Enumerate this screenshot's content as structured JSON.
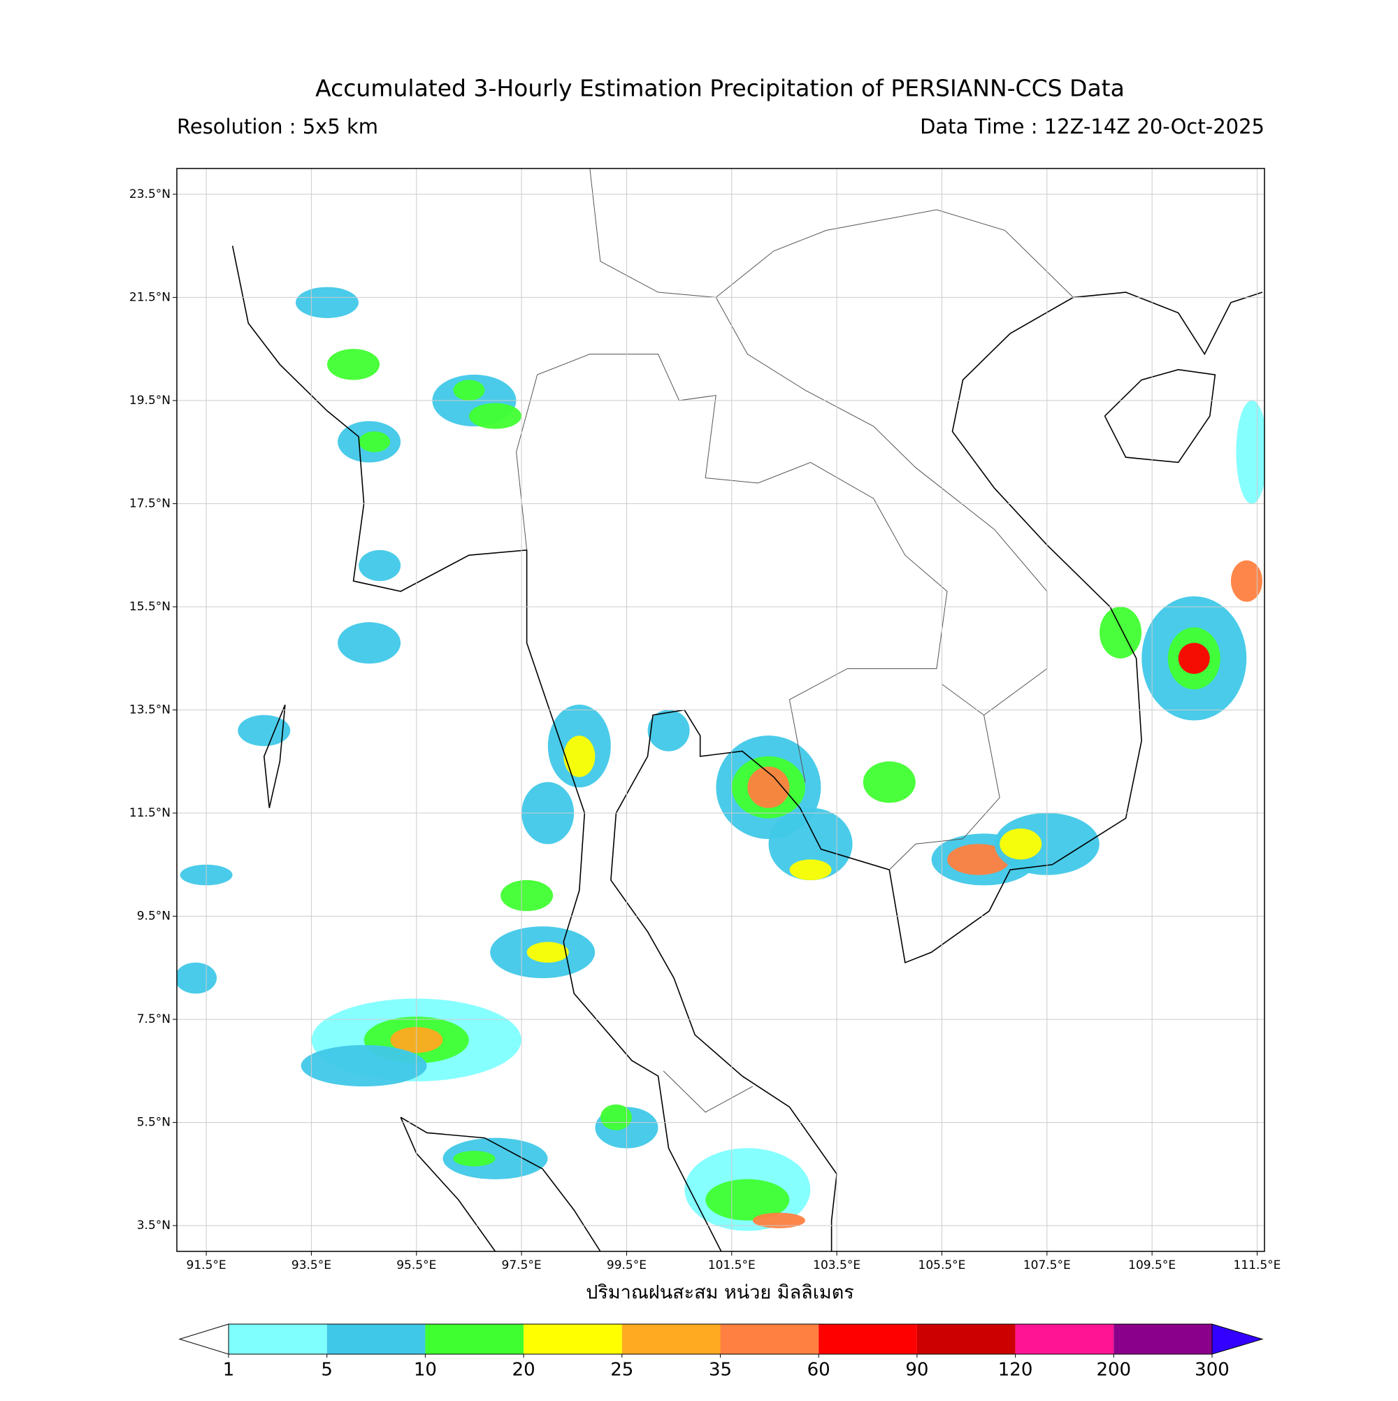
{
  "chart_data": {
    "type": "map",
    "title": "Accumulated 3-Hourly Estimation Precipitation of PERSIANN-CCS Data",
    "subtitle_left": "Resolution : 5x5 km",
    "subtitle_right": "Data Time : 12Z-14Z 20-Oct-2025",
    "xlabel": "ปริมาณฝนสะสม หน่วย มิลลิเมตร",
    "xlim": [
      90.94,
      111.64
    ],
    "ylim": [
      3.0,
      24.0
    ],
    "xticks": [
      {
        "value": 91.5,
        "label": "91.5°E"
      },
      {
        "value": 93.5,
        "label": "93.5°E"
      },
      {
        "value": 95.5,
        "label": "95.5°E"
      },
      {
        "value": 97.5,
        "label": "97.5°E"
      },
      {
        "value": 99.5,
        "label": "99.5°E"
      },
      {
        "value": 101.5,
        "label": "101.5°E"
      },
      {
        "value": 103.5,
        "label": "103.5°E"
      },
      {
        "value": 105.5,
        "label": "105.5°E"
      },
      {
        "value": 107.5,
        "label": "107.5°E"
      },
      {
        "value": 109.5,
        "label": "109.5°E"
      },
      {
        "value": 111.5,
        "label": "111.5°E"
      }
    ],
    "yticks": [
      {
        "value": 3.5,
        "label": "3.5°N"
      },
      {
        "value": 5.5,
        "label": "5.5°N"
      },
      {
        "value": 7.5,
        "label": "7.5°N"
      },
      {
        "value": 9.5,
        "label": "9.5°N"
      },
      {
        "value": 11.5,
        "label": "11.5°N"
      },
      {
        "value": 13.5,
        "label": "13.5°N"
      },
      {
        "value": 15.5,
        "label": "15.5°N"
      },
      {
        "value": 17.5,
        "label": "17.5°N"
      },
      {
        "value": 19.5,
        "label": "19.5°N"
      },
      {
        "value": 21.5,
        "label": "21.5°N"
      },
      {
        "value": 23.5,
        "label": "23.5°N"
      }
    ],
    "grid": true,
    "colorbar": {
      "levels": [
        1,
        5,
        10,
        20,
        25,
        35,
        60,
        90,
        120,
        200,
        300
      ],
      "colors": [
        "#80ffff",
        "#40c8e8",
        "#40ff30",
        "#ffff00",
        "#ffaa20",
        "#ff8040",
        "#ff0000",
        "#cc0000",
        "#ff1493",
        "#8b008b"
      ],
      "extend_low_color": "#ffffff",
      "extend_high_color": "#3300ff"
    }
  }
}
